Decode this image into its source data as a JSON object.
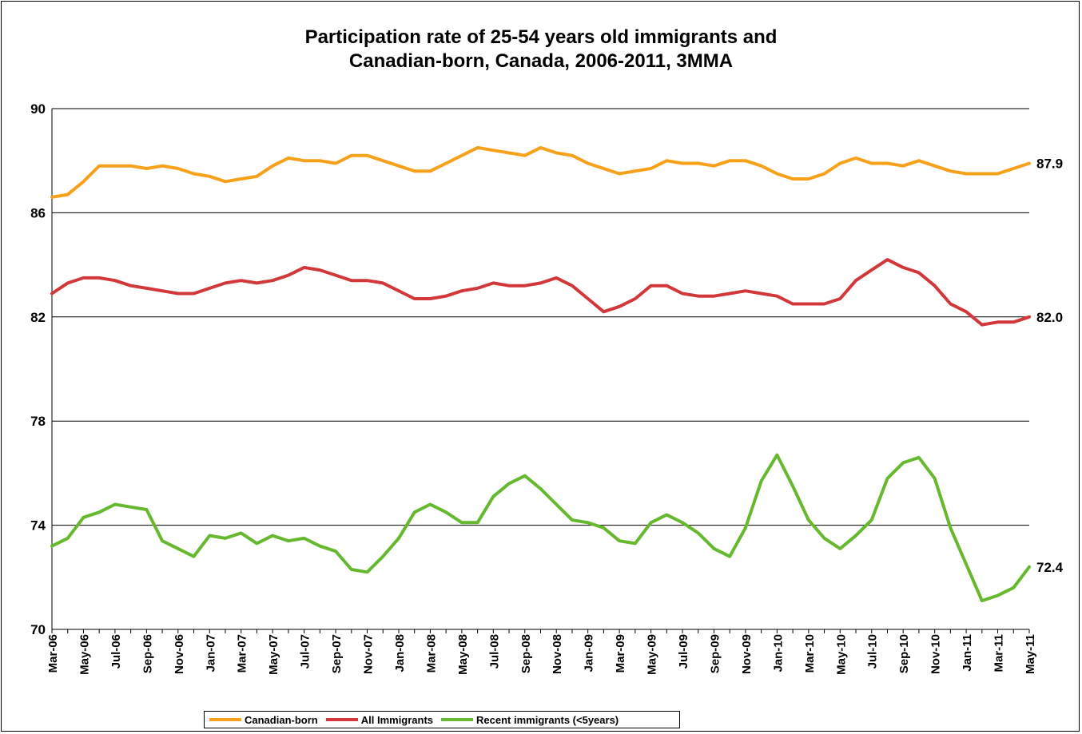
{
  "chart_data": {
    "type": "line",
    "title": "Participation rate of 25-54 years old immigrants and\nCanadian-born, Canada, 2006-2011, 3MMA",
    "xlabel": "",
    "ylabel": "",
    "ylim": [
      70,
      90
    ],
    "yticks": [
      70,
      74,
      78,
      82,
      86,
      90
    ],
    "grid": true,
    "legend_position": "bottom",
    "categories": [
      "Mar-06",
      "Apr-06",
      "May-06",
      "Jun-06",
      "Jul-06",
      "Aug-06",
      "Sep-06",
      "Oct-06",
      "Nov-06",
      "Dec-06",
      "Jan-07",
      "Feb-07",
      "Mar-07",
      "Apr-07",
      "May-07",
      "Jun-07",
      "Jul-07",
      "Aug-07",
      "Sep-07",
      "Oct-07",
      "Nov-07",
      "Dec-07",
      "Jan-08",
      "Feb-08",
      "Mar-08",
      "Apr-08",
      "May-08",
      "Jun-08",
      "Jul-08",
      "Aug-08",
      "Sep-08",
      "Oct-08",
      "Nov-08",
      "Dec-08",
      "Jan-09",
      "Feb-09",
      "Mar-09",
      "Apr-09",
      "May-09",
      "Jun-09",
      "Jul-09",
      "Aug-09",
      "Sep-09",
      "Oct-09",
      "Nov-09",
      "Dec-09",
      "Jan-10",
      "Feb-10",
      "Mar-10",
      "Apr-10",
      "May-10",
      "Jun-10",
      "Jul-10",
      "Aug-10",
      "Sep-10",
      "Oct-10",
      "Nov-10",
      "Dec-10",
      "Jan-11",
      "Feb-11",
      "Mar-11",
      "Apr-11",
      "May-11"
    ],
    "tick_labels": [
      "Mar-06",
      "May-06",
      "Jul-06",
      "Sep-06",
      "Nov-06",
      "Jan-07",
      "Mar-07",
      "May-07",
      "Jul-07",
      "Sep-07",
      "Nov-07",
      "Jan-08",
      "Mar-08",
      "May-08",
      "Jul-08",
      "Sep-08",
      "Nov-08",
      "Jan-09",
      "Mar-09",
      "May-09",
      "Jul-09",
      "Sep-09",
      "Nov-09",
      "Jan-10",
      "Mar-10",
      "May-10",
      "Jul-10",
      "Sep-10",
      "Nov-10",
      "Jan-11",
      "Mar-11",
      "May-11"
    ],
    "series": [
      {
        "name": "Canadian-born",
        "color": "#F7A11A",
        "end_label": "87.9",
        "values": [
          86.6,
          86.7,
          87.2,
          87.8,
          87.8,
          87.8,
          87.7,
          87.8,
          87.7,
          87.5,
          87.4,
          87.2,
          87.3,
          87.4,
          87.8,
          88.1,
          88.0,
          88.0,
          87.9,
          88.2,
          88.2,
          88.0,
          87.8,
          87.6,
          87.6,
          87.9,
          88.2,
          88.5,
          88.4,
          88.3,
          88.2,
          88.5,
          88.3,
          88.2,
          87.9,
          87.7,
          87.5,
          87.6,
          87.7,
          88.0,
          87.9,
          87.9,
          87.8,
          88.0,
          88.0,
          87.8,
          87.5,
          87.3,
          87.3,
          87.5,
          87.9,
          88.1,
          87.9,
          87.9,
          87.8,
          88.0,
          87.8,
          87.6,
          87.5,
          87.5,
          87.5,
          87.7,
          87.9
        ]
      },
      {
        "name": "All Immigrants",
        "color": "#D2373A",
        "end_label": "82.0",
        "values": [
          82.9,
          83.3,
          83.5,
          83.5,
          83.4,
          83.2,
          83.1,
          83.0,
          82.9,
          82.9,
          83.1,
          83.3,
          83.4,
          83.3,
          83.4,
          83.6,
          83.9,
          83.8,
          83.6,
          83.4,
          83.4,
          83.3,
          83.0,
          82.7,
          82.7,
          82.8,
          83.0,
          83.1,
          83.3,
          83.2,
          83.2,
          83.3,
          83.5,
          83.2,
          82.7,
          82.2,
          82.4,
          82.7,
          83.2,
          83.2,
          82.9,
          82.8,
          82.8,
          82.9,
          83.0,
          82.9,
          82.8,
          82.5,
          82.5,
          82.5,
          82.7,
          83.4,
          83.8,
          84.2,
          83.9,
          83.7,
          83.2,
          82.5,
          82.2,
          81.7,
          81.8,
          81.8,
          82.0
        ]
      },
      {
        "name": "Recent immigrants (<5years)",
        "color": "#66B82E",
        "end_label": "72.4",
        "values": [
          73.2,
          73.5,
          74.3,
          74.5,
          74.8,
          74.7,
          74.6,
          73.4,
          73.1,
          72.8,
          73.6,
          73.5,
          73.7,
          73.3,
          73.6,
          73.4,
          73.5,
          73.2,
          73.0,
          72.3,
          72.2,
          72.8,
          73.5,
          74.5,
          74.8,
          74.5,
          74.1,
          74.1,
          75.1,
          75.6,
          75.9,
          75.4,
          74.8,
          74.2,
          74.1,
          73.9,
          73.4,
          73.3,
          74.1,
          74.4,
          74.1,
          73.7,
          73.1,
          72.8,
          73.9,
          75.7,
          76.7,
          75.5,
          74.2,
          73.5,
          73.1,
          73.6,
          74.2,
          75.8,
          76.4,
          76.6,
          75.8,
          73.9,
          72.5,
          71.1,
          71.3,
          71.6,
          72.4
        ]
      }
    ]
  }
}
